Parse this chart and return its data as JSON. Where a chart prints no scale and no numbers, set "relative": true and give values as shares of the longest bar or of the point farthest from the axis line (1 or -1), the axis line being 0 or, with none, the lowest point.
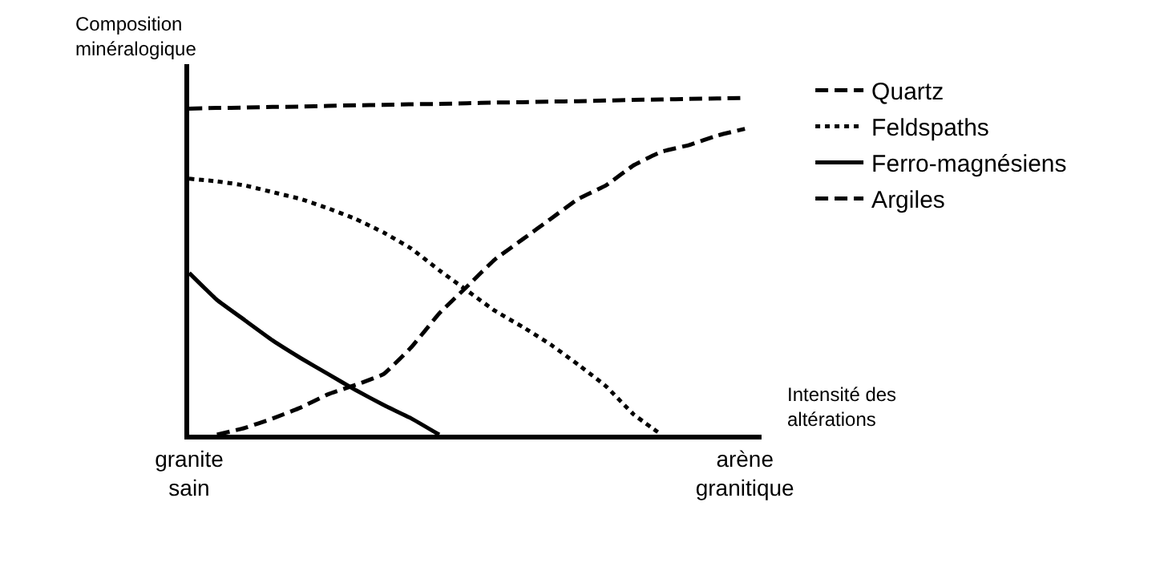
{
  "chart_data": {
    "type": "line",
    "relative": true,
    "ylabel": "Composition minéralogique",
    "xlabel": "Intensité des altérations",
    "categories": [
      "granite sain",
      null,
      null,
      null,
      null,
      null,
      null,
      null,
      null,
      null,
      null,
      null,
      null,
      null,
      null,
      null,
      null,
      null,
      null,
      null,
      "arène granitique"
    ],
    "legend": "right",
    "marker": "none",
    "series": [
      {
        "name": "Quartz",
        "color": "#000000",
        "line_style": "dashed",
        "values": [
          0.968,
          0.97,
          0.971,
          0.973,
          0.974,
          0.976,
          0.978,
          0.979,
          0.981,
          0.982,
          0.984,
          0.986,
          0.987,
          0.989,
          0.99,
          0.992,
          0.994,
          0.995,
          0.997,
          0.998,
          1.0
        ]
      },
      {
        "name": "Feldspaths",
        "color": "#000000",
        "line_style": "dotted",
        "values": [
          0.76,
          0.752,
          0.74,
          0.72,
          0.7,
          0.672,
          0.64,
          0.6,
          0.552,
          0.488,
          0.428,
          0.368,
          0.32,
          0.268,
          0.208,
          0.144,
          0.06,
          0.0,
          null,
          null,
          null
        ]
      },
      {
        "name": "Ferro-magnésiens",
        "color": "#000000",
        "line_style": "solid",
        "values": [
          0.48,
          0.4,
          0.34,
          0.28,
          0.228,
          0.18,
          0.132,
          0.088,
          0.048,
          0.0,
          null,
          null,
          null,
          null,
          null,
          null,
          null,
          null,
          null,
          null,
          null
        ]
      },
      {
        "name": "Argiles",
        "color": "#000000",
        "line_style": "dashed",
        "values": [
          null,
          0.0,
          0.02,
          0.048,
          0.08,
          0.12,
          0.148,
          0.18,
          0.26,
          0.36,
          0.44,
          0.52,
          0.58,
          0.64,
          0.7,
          0.74,
          0.8,
          0.84,
          0.86,
          0.888,
          0.908
        ]
      }
    ]
  }
}
